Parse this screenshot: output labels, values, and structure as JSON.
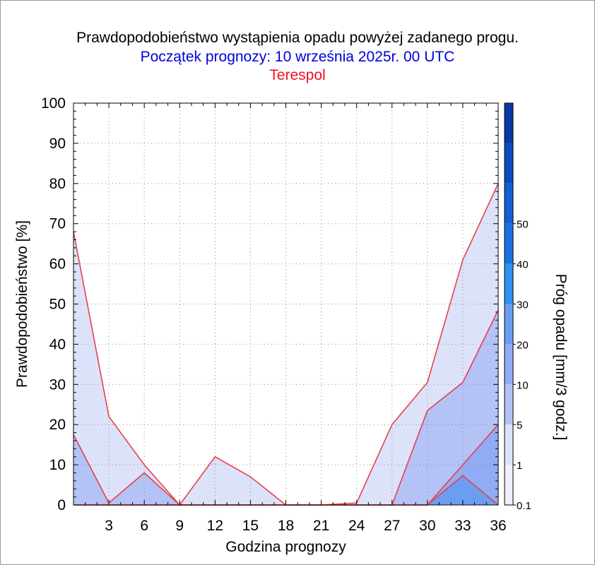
{
  "title": "Prawdopodobieństwo wystąpienia opadu powyżej zadanego progu.",
  "subtitle": "Początek prognozy: 10 września 2025r. 00 UTC",
  "location": "Terespol",
  "colors": {
    "subtitle": "#0000dd",
    "location": "#ee1122",
    "series_line": "#e8404a"
  },
  "chart_data": {
    "type": "area",
    "xlabel": "Godzina prognozy",
    "ylabel": "Prawdopodobieństwo [%]",
    "xlim": [
      0,
      36
    ],
    "ylim": [
      0,
      100
    ],
    "x": [
      0,
      3,
      6,
      9,
      12,
      15,
      18,
      21,
      24,
      27,
      30,
      33,
      36
    ],
    "x_tick_labels": [
      "3",
      "6",
      "9",
      "12",
      "15",
      "18",
      "21",
      "24",
      "27",
      "30",
      "33",
      "36"
    ],
    "y_tick_labels": [
      "0",
      "10",
      "20",
      "30",
      "40",
      "50",
      "60",
      "70",
      "80",
      "90",
      "100"
    ],
    "grid": true,
    "series": [
      {
        "threshold": "0.1",
        "color": "#dde2fb",
        "values": [
          68,
          22,
          10,
          0,
          12,
          7,
          0,
          0,
          0.5,
          20,
          30.5,
          61,
          80
        ]
      },
      {
        "threshold": "1",
        "color": "#b3c3f6",
        "values": [
          17.5,
          0.5,
          8,
          0,
          0,
          0,
          0,
          0,
          0,
          0,
          23.5,
          30.5,
          48.5
        ]
      },
      {
        "threshold": "5",
        "color": "#91acf4",
        "values": [
          0,
          0,
          0,
          0,
          0,
          0,
          0,
          0,
          0,
          0,
          0,
          10,
          20
        ]
      },
      {
        "threshold": "10",
        "color": "#6b9ef3",
        "values": [
          0,
          0,
          0,
          0,
          0,
          0,
          0,
          0,
          0,
          0,
          0,
          7.3,
          0
        ]
      }
    ],
    "colorbar": {
      "label": "Próg opadu [mm/3 godz.]",
      "tick_labels": [
        "0.1",
        "1",
        "5",
        "10",
        "20",
        "30",
        "40",
        "50"
      ],
      "colors": [
        "#eef0fd",
        "#dde2fb",
        "#b3c3f6",
        "#91acf4",
        "#6b9ef3",
        "#2b94f2",
        "#1773e2",
        "#1160d4",
        "#0b4dbf",
        "#0838a5"
      ]
    }
  }
}
